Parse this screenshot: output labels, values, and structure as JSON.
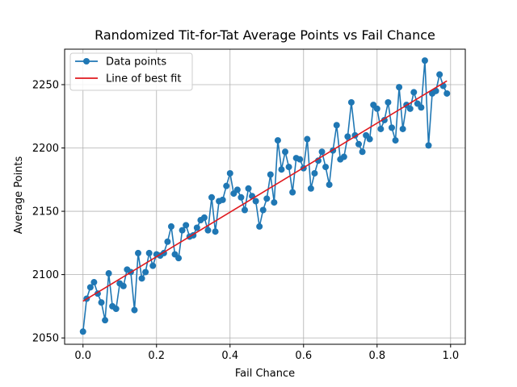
{
  "chart_data": {
    "type": "line",
    "title": "Randomized Tit-for-Tat Average Points vs Fail Chance",
    "xlabel": "Fail Chance",
    "ylabel": "Average Points",
    "xlim": [
      -0.05,
      1.04
    ],
    "ylim": [
      2045,
      2278
    ],
    "xticks": [
      0.0,
      0.2,
      0.4,
      0.6,
      0.8,
      1.0
    ],
    "xtick_labels": [
      "0.0",
      "0.2",
      "0.4",
      "0.6",
      "0.8",
      "1.0"
    ],
    "yticks": [
      2050,
      2100,
      2150,
      2200,
      2250
    ],
    "ytick_labels": [
      "2050",
      "2100",
      "2150",
      "2200",
      "2250"
    ],
    "grid": true,
    "legend_position": "top-left",
    "series": [
      {
        "name": "Data points",
        "kind": "line-markers",
        "color": "#1f77b4",
        "x": [
          0.0,
          0.01,
          0.02,
          0.03,
          0.04,
          0.05,
          0.06,
          0.07,
          0.08,
          0.09,
          0.1,
          0.11,
          0.12,
          0.13,
          0.14,
          0.15,
          0.16,
          0.17,
          0.18,
          0.19,
          0.2,
          0.21,
          0.22,
          0.23,
          0.24,
          0.25,
          0.26,
          0.27,
          0.28,
          0.29,
          0.3,
          0.31,
          0.32,
          0.33,
          0.34,
          0.35,
          0.36,
          0.37,
          0.38,
          0.39,
          0.4,
          0.41,
          0.42,
          0.43,
          0.44,
          0.45,
          0.46,
          0.47,
          0.48,
          0.49,
          0.5,
          0.51,
          0.52,
          0.53,
          0.54,
          0.55,
          0.56,
          0.57,
          0.58,
          0.59,
          0.6,
          0.61,
          0.62,
          0.63,
          0.64,
          0.65,
          0.66,
          0.67,
          0.68,
          0.69,
          0.7,
          0.71,
          0.72,
          0.73,
          0.74,
          0.75,
          0.76,
          0.77,
          0.78,
          0.79,
          0.8,
          0.81,
          0.82,
          0.83,
          0.84,
          0.85,
          0.86,
          0.87,
          0.88,
          0.89,
          0.9,
          0.91,
          0.92,
          0.93,
          0.94,
          0.95,
          0.96,
          0.97,
          0.98,
          0.99
        ],
        "y": [
          2055,
          2081,
          2090,
          2094,
          2085,
          2078,
          2064,
          2101,
          2075,
          2073,
          2093,
          2091,
          2104,
          2102,
          2072,
          2117,
          2097,
          2102,
          2117,
          2107,
          2116,
          2115,
          2117,
          2126,
          2138,
          2116,
          2113,
          2135,
          2139,
          2130,
          2131,
          2137,
          2143,
          2145,
          2135,
          2161,
          2134,
          2158,
          2159,
          2170,
          2180,
          2164,
          2167,
          2161,
          2151,
          2168,
          2162,
          2158,
          2138,
          2151,
          2160,
          2179,
          2157,
          2206,
          2183,
          2197,
          2185,
          2165,
          2192,
          2191,
          2184,
          2207,
          2168,
          2180,
          2190,
          2197,
          2185,
          2171,
          2198,
          2218,
          2191,
          2193,
          2209,
          2236,
          2210,
          2203,
          2197,
          2210,
          2207,
          2234,
          2231,
          2215,
          2222,
          2236,
          2216,
          2206,
          2248,
          2215,
          2234,
          2231,
          2244,
          2235,
          2232,
          2269,
          2202,
          2243,
          2245,
          2258,
          2249,
          2243
        ]
      },
      {
        "name": "Line of best fit",
        "kind": "line",
        "color": "#e0191e",
        "x": [
          0.0,
          0.99
        ],
        "y": [
          2079,
          2253
        ]
      }
    ]
  }
}
